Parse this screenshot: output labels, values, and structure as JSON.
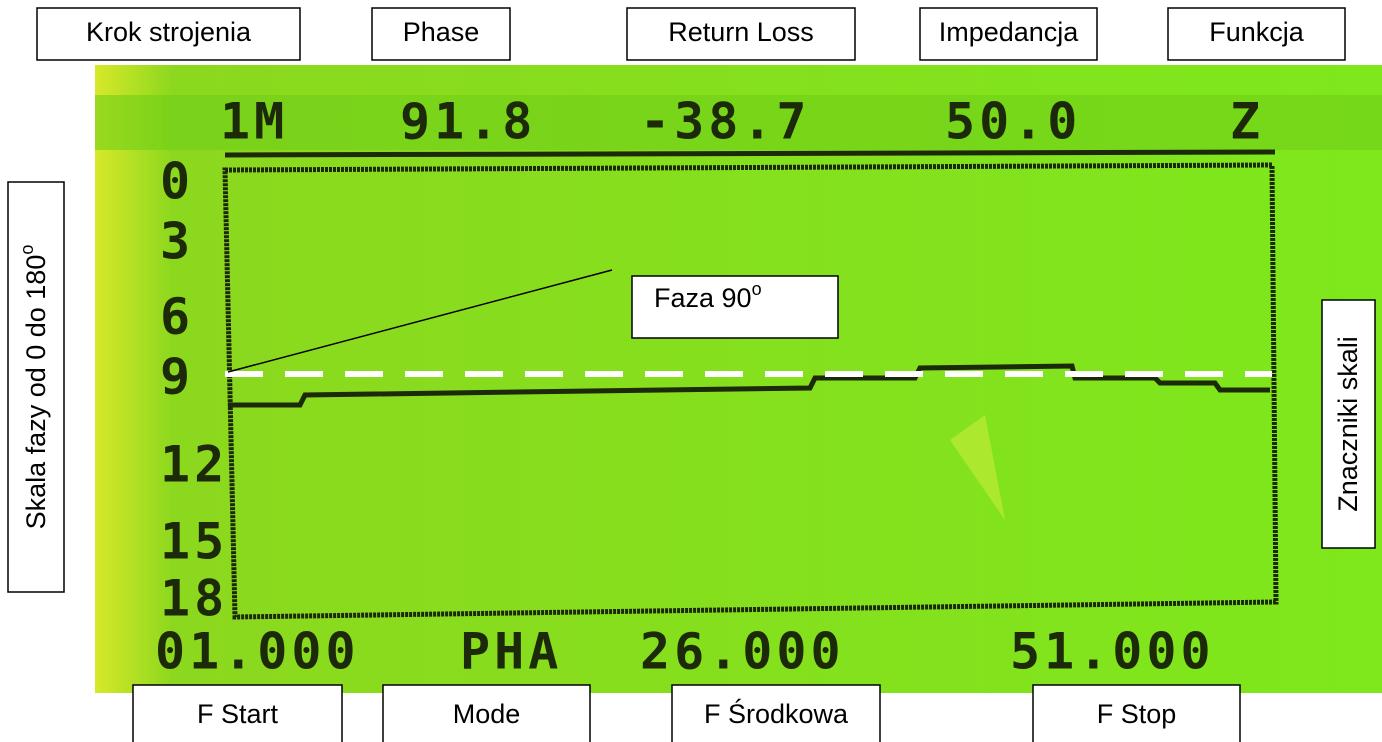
{
  "header": {
    "labels": [
      "Krok strojenia",
      "Phase",
      "Return Loss",
      "Impedancja",
      "Funkcja"
    ]
  },
  "footer": {
    "labels": [
      "F Start",
      "Mode",
      "F Środkowa",
      "F Stop"
    ]
  },
  "left_label": {
    "text": "Skala  fazy od 0 do 180",
    "sup": "o"
  },
  "right_label": "Znaczniki skali",
  "callout": {
    "text": "Faza 90",
    "sup": "o"
  },
  "lcd": {
    "top_row": [
      "1M",
      "91.8",
      "-38.7",
      "50.0",
      "Z"
    ],
    "y_scale": [
      "0",
      "3",
      "6",
      "9",
      "12",
      "15",
      "18"
    ],
    "bottom_row": [
      "01.000",
      "PHA",
      "26.000",
      "51.000"
    ]
  }
}
